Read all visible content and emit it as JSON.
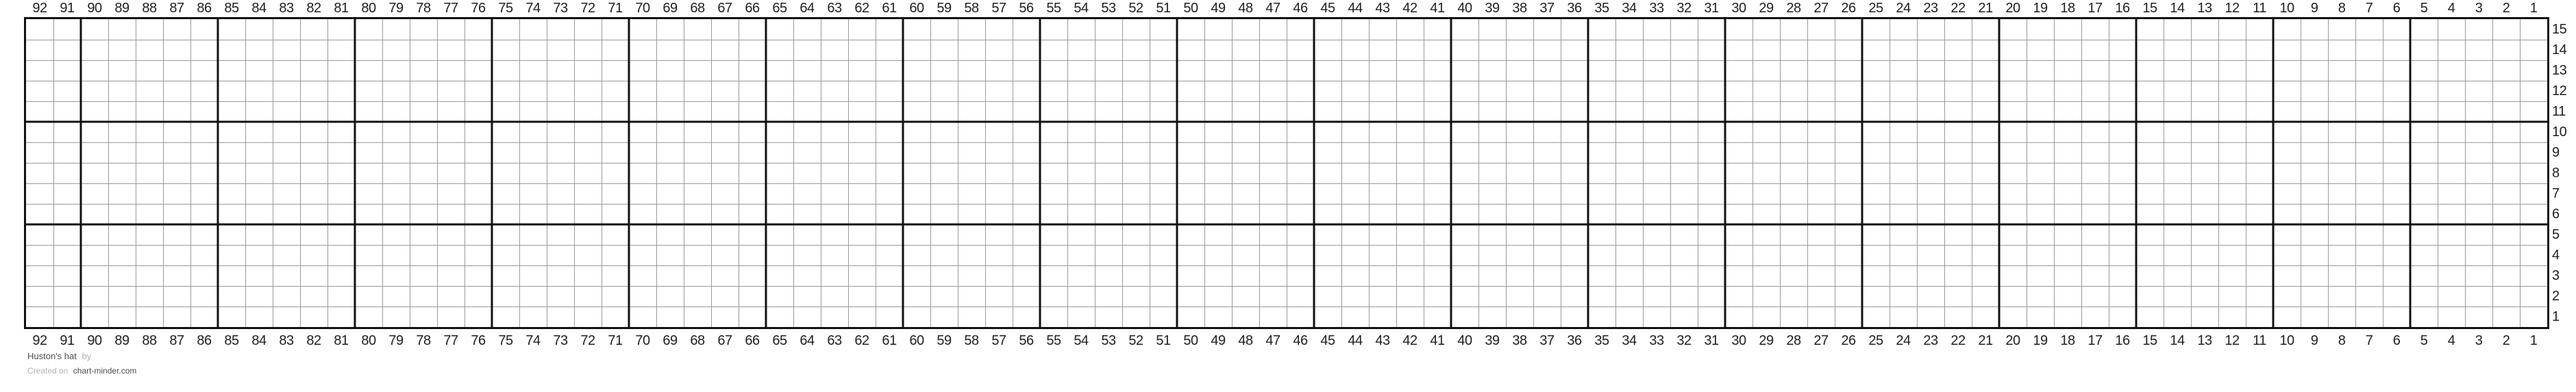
{
  "chart_data": {
    "type": "table",
    "subtype": "knitting-chart-grid",
    "title": "Huston's hat",
    "columns_count": 92,
    "rows_count": 15,
    "column_labels": [
      92,
      91,
      90,
      89,
      88,
      87,
      86,
      85,
      84,
      83,
      82,
      81,
      80,
      79,
      78,
      77,
      76,
      75,
      74,
      73,
      72,
      71,
      70,
      69,
      68,
      67,
      66,
      65,
      64,
      63,
      62,
      61,
      60,
      59,
      58,
      57,
      56,
      55,
      54,
      53,
      52,
      51,
      50,
      49,
      48,
      47,
      46,
      45,
      44,
      43,
      42,
      41,
      40,
      39,
      38,
      37,
      36,
      35,
      34,
      33,
      32,
      31,
      30,
      29,
      28,
      27,
      26,
      25,
      24,
      23,
      22,
      21,
      20,
      19,
      18,
      17,
      16,
      15,
      14,
      13,
      12,
      11,
      10,
      9,
      8,
      7,
      6,
      5,
      4,
      3,
      2,
      1
    ],
    "row_labels": [
      15,
      14,
      13,
      12,
      11,
      10,
      9,
      8,
      7,
      6,
      5,
      4,
      3,
      2,
      1
    ],
    "cells": "all cells empty (blank white grid, no stitch symbols)",
    "bold_gridline_every": 5,
    "layout_hints": {
      "column_labels_position": [
        "top",
        "bottom"
      ],
      "row_labels_position": "right",
      "grid_on": true,
      "legend": "none"
    }
  },
  "footer": {
    "title": "Huston's hat",
    "by_label": "by",
    "credit_prefix": "Created on",
    "credit_site": "chart-minder.com"
  },
  "colors": {
    "background": "#ffffff",
    "thin_grid_line": "#9a9a9a",
    "thick_grid_line": "#111111",
    "label_text": "#1f1f1f",
    "footer_dark_text": "#4d4d4d",
    "footer_light_text": "#b3b3b3"
  }
}
